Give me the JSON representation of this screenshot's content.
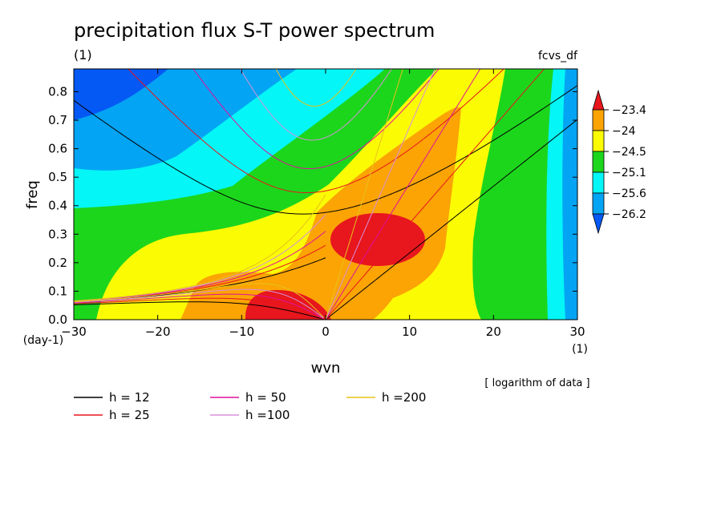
{
  "chart_data": {
    "type": "heatmap",
    "title": "precipitation flux S-T power spectrum",
    "subtitle_left": "(1)",
    "subtitle_right": "fcvs_df",
    "xlabel": "wvn",
    "ylabel": "freq",
    "x_unit": "(1)",
    "y_unit": "(day-1)",
    "note": "[ logarithm of data ]",
    "xlim": [
      -30,
      30
    ],
    "ylim": [
      0,
      0.88
    ],
    "x_ticks": [
      -30,
      -20,
      -10,
      0,
      10,
      20,
      30
    ],
    "y_ticks": [
      0.0,
      0.1,
      0.2,
      0.3,
      0.4,
      0.5,
      0.6,
      0.7,
      0.8
    ],
    "x_tick_labels": [
      "−30",
      "−20",
      "−10",
      "0",
      "10",
      "20",
      "30"
    ],
    "y_tick_labels": [
      "0.0",
      "0.1",
      "0.2",
      "0.3",
      "0.4",
      "0.5",
      "0.6",
      "0.7",
      "0.8"
    ],
    "colorbar": {
      "labels": [
        "−23.4",
        "−24",
        "−24.5",
        "−25.1",
        "−25.6",
        "−26.2"
      ],
      "colors": [
        "#e8161d",
        "#fba404",
        "#fbfb04",
        "#1cd61c",
        "#04f6f6",
        "#04a4f4",
        "#0458f4"
      ]
    },
    "levels": {
      "deep_blue": "#0458f4",
      "blue": "#04a4f4",
      "cyan": "#04f6f6",
      "green": "#1cd61c",
      "yellow": "#fbfb04",
      "orange": "#fba404",
      "red": "#e8161d"
    },
    "dispersion_curves": [
      {
        "name": "h = 12",
        "color": "#000000"
      },
      {
        "name": "h = 25",
        "color": "#e8161d"
      },
      {
        "name": "h = 50",
        "color": "#e0109c"
      },
      {
        "name": "h =100",
        "color": "#d890d8"
      },
      {
        "name": "h =200",
        "color": "#e8c21a"
      }
    ]
  }
}
